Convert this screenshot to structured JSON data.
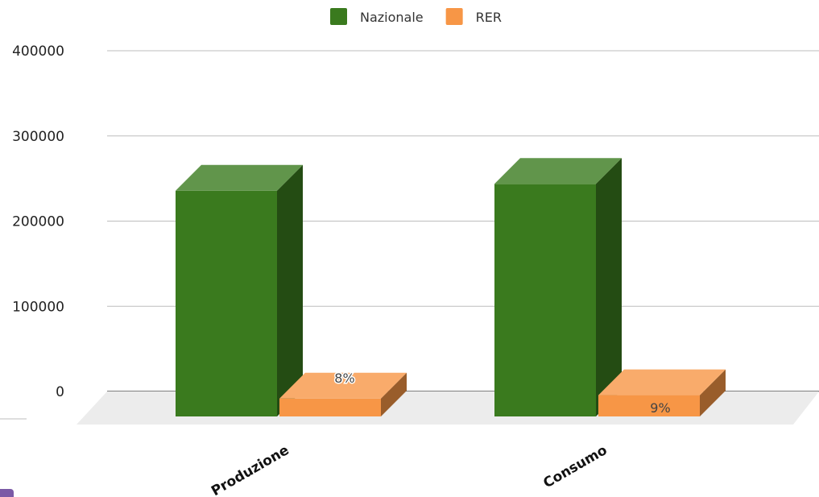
{
  "chart_data": {
    "type": "bar",
    "style": "3d",
    "categories": [
      "Produzione",
      "Consumo"
    ],
    "series": [
      {
        "name": "Nazionale",
        "values": [
          265000,
          273000
        ],
        "color": "#3a7a1e"
      },
      {
        "name": "RER",
        "values": [
          21000,
          25000
        ],
        "color": "#f79646",
        "data_labels": [
          "8%",
          "9%"
        ]
      }
    ],
    "yticks": [
      "0",
      "100000",
      "200000",
      "300000",
      "400000"
    ],
    "ylim": [
      0,
      400000
    ],
    "grid": true,
    "legend": "top-center"
  }
}
